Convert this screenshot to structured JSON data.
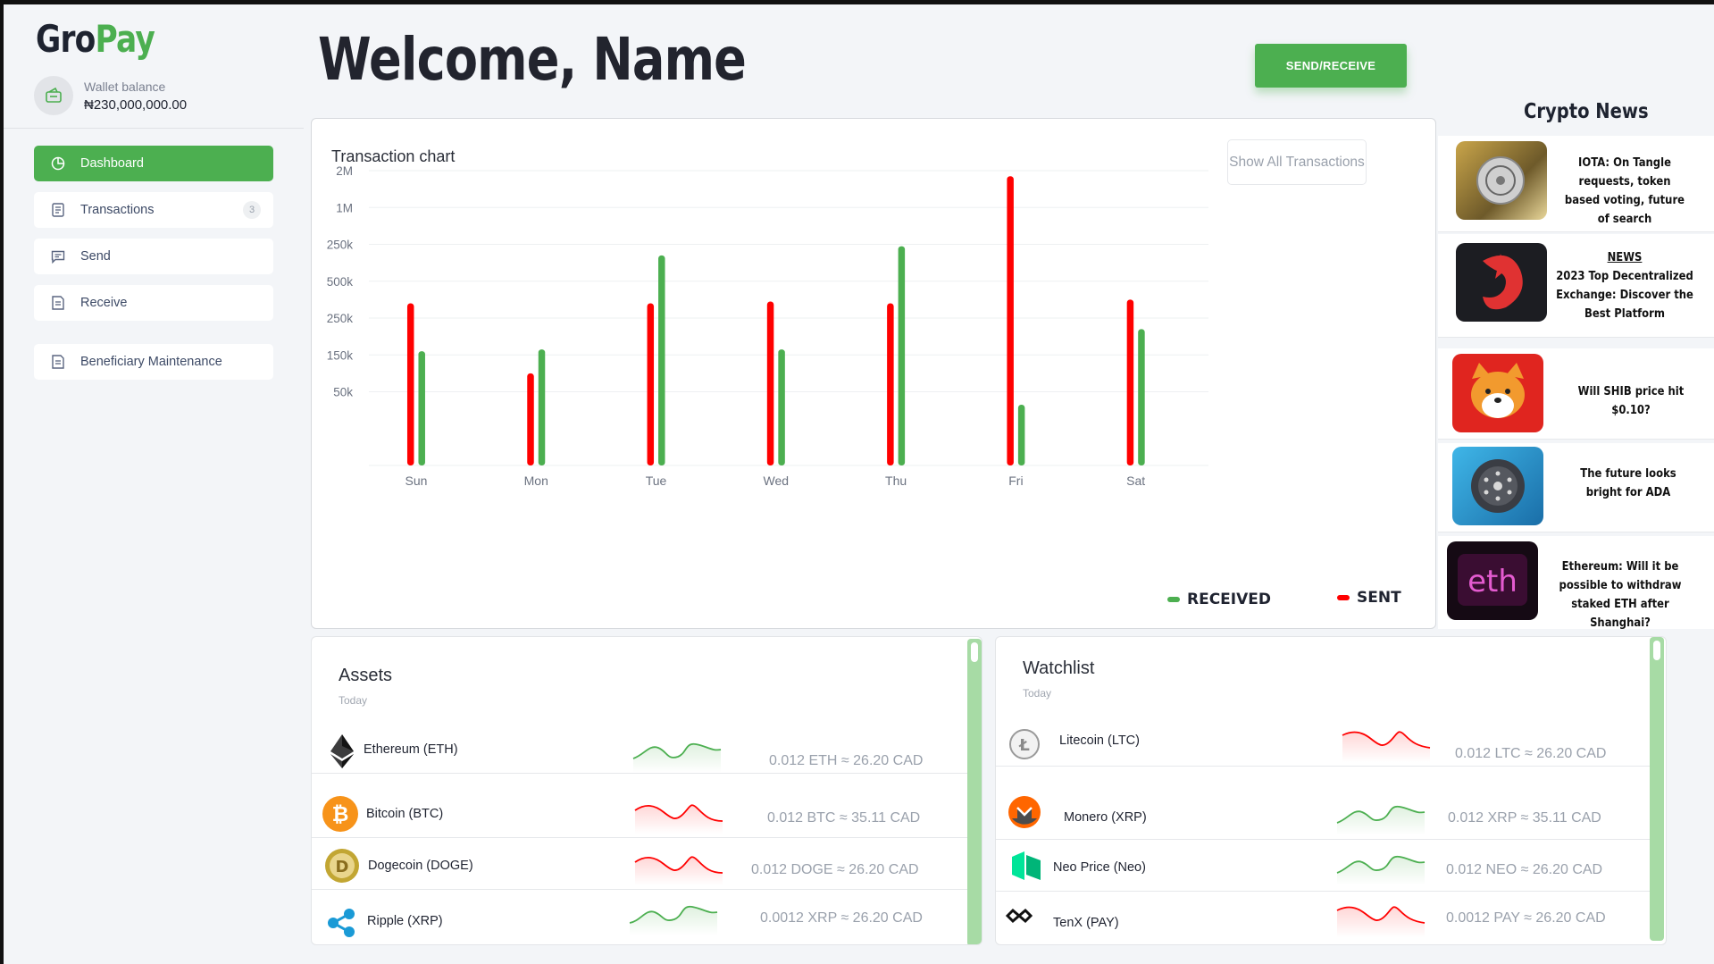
{
  "brand": {
    "part1": "Gro",
    "part2": "Pay"
  },
  "wallet": {
    "label": "Wallet balance",
    "amount": "₦230,000,000.00"
  },
  "nav": [
    {
      "label": "Dashboard",
      "icon": "pie-chart-icon",
      "active": true
    },
    {
      "label": "Transactions",
      "icon": "document-icon",
      "badge": "3"
    },
    {
      "label": "Send",
      "icon": "message-icon"
    },
    {
      "label": "Receive",
      "icon": "receipt-icon"
    },
    {
      "label": "Beneficiary Maintenance",
      "icon": "receipt-icon"
    }
  ],
  "header": {
    "welcome": "Welcome, Name",
    "send_receive": "SEND/RECEIVE"
  },
  "chart_card": {
    "title": "Transaction chart",
    "show_all": "Show All Transactions"
  },
  "chart_data": {
    "type": "bar",
    "categories": [
      "Sun",
      "Mon",
      "Tue",
      "Wed",
      "Thu",
      "Fri",
      "Sat"
    ],
    "ytick_labels": [
      "2M",
      "1M",
      "250k",
      "500k",
      "250k",
      "150k",
      "50k"
    ],
    "series": [
      {
        "name": "SENT",
        "color": "#ff0000",
        "values": [
          4.4,
          2.5,
          4.4,
          4.45,
          4.4,
          7.85,
          4.5
        ]
      },
      {
        "name": "RECEIVED",
        "color": "#4caf50",
        "values": [
          3.1,
          3.15,
          5.7,
          3.15,
          5.95,
          1.65,
          3.7
        ]
      }
    ],
    "ylim": [
      0,
      8
    ],
    "grid": true,
    "legend_position": "bottom-right"
  },
  "news": {
    "title": "Crypto News",
    "items": [
      {
        "tag": "",
        "text": "IOTA: On Tangle requests, token based voting, future of search",
        "thumb": "iota-coin-image"
      },
      {
        "tag": "NEWS",
        "text": "2023 Top Decentralized Exchange: Discover the Best Platform",
        "thumb": "dex-logo-image"
      },
      {
        "tag": "",
        "text": "Will SHIB price hit $0.10?",
        "thumb": "shiba-inu-image"
      },
      {
        "tag": "",
        "text": "The future looks bright for ADA",
        "thumb": "cardano-coin-image"
      },
      {
        "tag": "",
        "text": "Ethereum: Will it be possible to withdraw staked ETH after Shanghai?",
        "thumb": "eth-neon-image"
      }
    ]
  },
  "assets": {
    "title": "Assets",
    "subtitle": "Today",
    "rows": [
      {
        "name": "Ethereum (ETH)",
        "value": "0.012 ETH ≈ 26.20 CAD",
        "trend": "up",
        "icon": "ethereum-icon"
      },
      {
        "name": "Bitcoin (BTC)",
        "value": "0.012 BTC ≈ 35.11 CAD",
        "trend": "down",
        "icon": "bitcoin-icon"
      },
      {
        "name": "Dogecoin (DOGE)",
        "value": "0.012 DOGE ≈ 26.20 CAD",
        "trend": "down",
        "icon": "dogecoin-icon"
      },
      {
        "name": "Ripple (XRP)",
        "value": "0.0012 XRP ≈ 26.20 CAD",
        "trend": "up",
        "icon": "ripple-icon"
      }
    ]
  },
  "watchlist": {
    "title": "Watchlist",
    "subtitle": "Today",
    "rows": [
      {
        "name": "Litecoin (LTC)",
        "value": "0.012 LTC ≈ 26.20 CAD",
        "trend": "down",
        "icon": "litecoin-icon"
      },
      {
        "name": "Monero (XRP)",
        "value": "0.012 XRP ≈ 35.11 CAD",
        "trend": "up",
        "icon": "monero-icon"
      },
      {
        "name": "Neo Price (Neo)",
        "value": "0.012 NEO ≈ 26.20 CAD",
        "trend": "up",
        "icon": "neo-icon"
      },
      {
        "name": "TenX (PAY)",
        "value": "0.0012 PAY ≈ 26.20 CAD",
        "trend": "down",
        "icon": "tenx-icon"
      }
    ]
  },
  "colors": {
    "accent": "#4caf50",
    "sent": "#ff0000",
    "received": "#4caf50"
  }
}
